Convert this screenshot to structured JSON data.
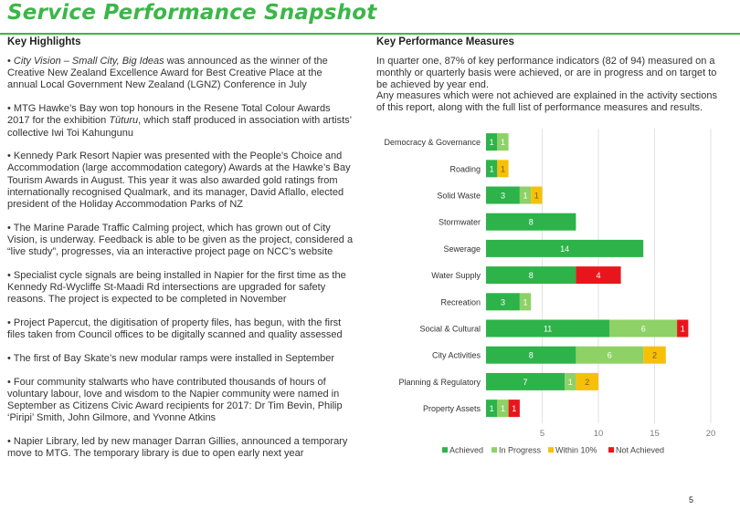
{
  "page_title": "Service Performance Snapshot",
  "key_highlights": {
    "heading": "Key Highlights",
    "bullets": [
      {
        "italic": "City Vision – Small City, Big Ideas",
        "text": " was announced as the winner of the Creative New Zealand Excellence Award for Best Creative Place at the annual Local Government New Zealand (LGNZ) Conference in July"
      },
      {
        "pre": "MTG Hawke’s Bay won top honours in the Resene Total Colour Awards 2017 for the exhibition ",
        "italic": "Tūturu",
        "text": ", which staff produced in association with artists’ collective Iwi Toi Kahungunu"
      },
      {
        "text": "Kennedy Park Resort Napier was presented with the People’s Choice and Accommodation (large accommodation category) Awards at the Hawke’s Bay Tourism Awards in August. This year it was also awarded gold ratings from internationally recognised Qualmark, and its manager, David Aflallo, elected president of the Holiday Accommodation Parks of NZ"
      },
      {
        "text": "The Marine Parade Traffic Calming project, which has grown out of City Vision, is underway. Feedback is able to be given as the project, considered a “live study”, progresses, via an interactive project page on NCC’s website"
      },
      {
        "text": "Specialist cycle signals are being installed in Napier for the first time as the Kennedy Rd-Wycliffe St-Maadi Rd intersections are upgraded for safety reasons. The project is expected to be completed in November"
      },
      {
        "text": "Project Papercut, the digitisation of property files, has begun, with the first files taken from Council offices to be digitally scanned and quality assessed"
      },
      {
        "text": "The first of Bay Skate’s new modular ramps were installed in September"
      },
      {
        "text": "Four community stalwarts who have contributed thousands of hours of voluntary labour, love and wisdom to the Napier community were named in September as Citizens Civic Award recipients for 2017: Dr Tim Bevin, Philip ‘Piripi’ Smith, John Gilmore, and Yvonne Atkins"
      },
      {
        "text": "Napier Library, led by new manager Darran Gillies, announced a temporary move to MTG. The temporary library is due to open early next year"
      }
    ]
  },
  "key_performance": {
    "heading": "Key Performance Measures",
    "para1": "In quarter one, 87% of key performance indicators (82 of 94) measured on a monthly or quarterly basis were achieved, or are in progress and on target to be achieved by year end.",
    "para2": "Any measures which were not achieved are explained in the activity sections of this report, along with the full list of performance measures and results."
  },
  "chart_data": {
    "type": "bar",
    "orientation": "horizontal",
    "stacked": true,
    "categories": [
      "Democracy & Governance",
      "Roading",
      "Solid Waste",
      "Stormwater",
      "Sewerage",
      "Water Supply",
      "Recreation",
      "Social & Cultural",
      "City Activities",
      "Planning & Regulatory",
      "Property Assets"
    ],
    "series": [
      {
        "name": "Achieved",
        "color": "#2db34a",
        "values": [
          1,
          1,
          3,
          8,
          14,
          8,
          3,
          11,
          8,
          7,
          1
        ]
      },
      {
        "name": "In Progress",
        "color": "#8ed166",
        "values": [
          1,
          0,
          1,
          0,
          0,
          0,
          1,
          6,
          6,
          1,
          1
        ]
      },
      {
        "name": "Within 10%",
        "color": "#f6c009",
        "values": [
          0,
          1,
          1,
          0,
          0,
          0,
          0,
          0,
          2,
          2,
          0
        ]
      },
      {
        "name": "Not Achieved",
        "color": "#e8161c",
        "values": [
          0,
          0,
          0,
          0,
          0,
          4,
          0,
          1,
          0,
          0,
          1
        ]
      }
    ],
    "xlim": [
      0,
      20
    ],
    "xticks": [
      "5",
      "10",
      "15",
      "20"
    ],
    "grid": true,
    "legend_position": "bottom"
  },
  "page_number": "5"
}
